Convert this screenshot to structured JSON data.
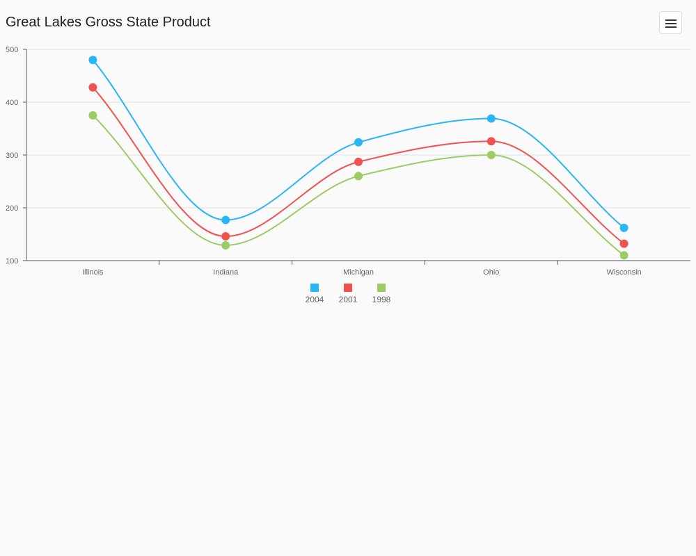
{
  "header": {
    "title": "Great Lakes Gross State Product",
    "menu_icon": "hamburger-menu-icon"
  },
  "chart_data": {
    "type": "line",
    "smooth": true,
    "categories": [
      "Illinois",
      "Indiana",
      "Michigan",
      "Ohio",
      "Wisconsin"
    ],
    "series": [
      {
        "name": "2004",
        "color": "#29b6f6",
        "values": [
          480,
          177,
          324,
          369,
          162
        ]
      },
      {
        "name": "2001",
        "color": "#ef5350",
        "values": [
          428,
          146,
          287,
          326,
          132
        ]
      },
      {
        "name": "1998",
        "color": "#9ccc65",
        "values": [
          375,
          129,
          260,
          300,
          110
        ]
      }
    ],
    "y_ticks": [
      100,
      200,
      300,
      400,
      500
    ],
    "ylim": [
      100,
      500
    ],
    "grid": true,
    "legend_position": "bottom-center"
  }
}
